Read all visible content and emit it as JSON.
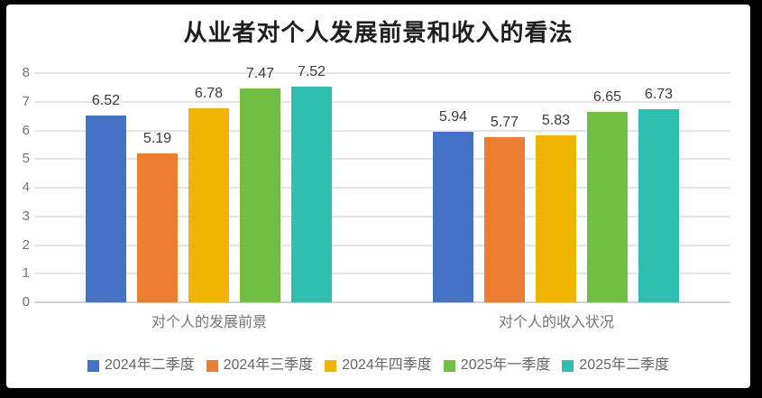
{
  "window": {
    "frame_color": "#000000",
    "panel_color": "#ffffff"
  },
  "chart_data": {
    "type": "bar",
    "title": "从业者对个人发展前景和收入的看法",
    "categories": [
      "对个人的发展前景",
      "对个人的收入状况"
    ],
    "series": [
      {
        "name": "2024年二季度",
        "color": "#4472C4",
        "values": [
          6.52,
          5.94
        ]
      },
      {
        "name": "2024年三季度",
        "color": "#ED7D31",
        "values": [
          5.19,
          5.77
        ]
      },
      {
        "name": "2024年四季度",
        "color": "#F0B502",
        "values": [
          6.78,
          5.83
        ]
      },
      {
        "name": "2025年一季度",
        "color": "#70BE42",
        "values": [
          7.47,
          6.65
        ]
      },
      {
        "name": "2025年二季度",
        "color": "#2FBFB1",
        "values": [
          7.52,
          6.73
        ]
      }
    ],
    "ylim": [
      0,
      8
    ],
    "yticks": [
      0,
      1,
      2,
      3,
      4,
      5,
      6,
      7,
      8
    ],
    "grid": true,
    "legend_position": "bottom",
    "data_labels": true,
    "label_format": "0.00",
    "title_color": "#1f1f1f",
    "axis_text_color": "#737373",
    "data_label_color": "#3a3a3a",
    "category_text_color": "#757575",
    "legend_text_color": "#666666",
    "grid_color": "#e6e6e6",
    "axis_line_color": "#d0d0d0"
  }
}
